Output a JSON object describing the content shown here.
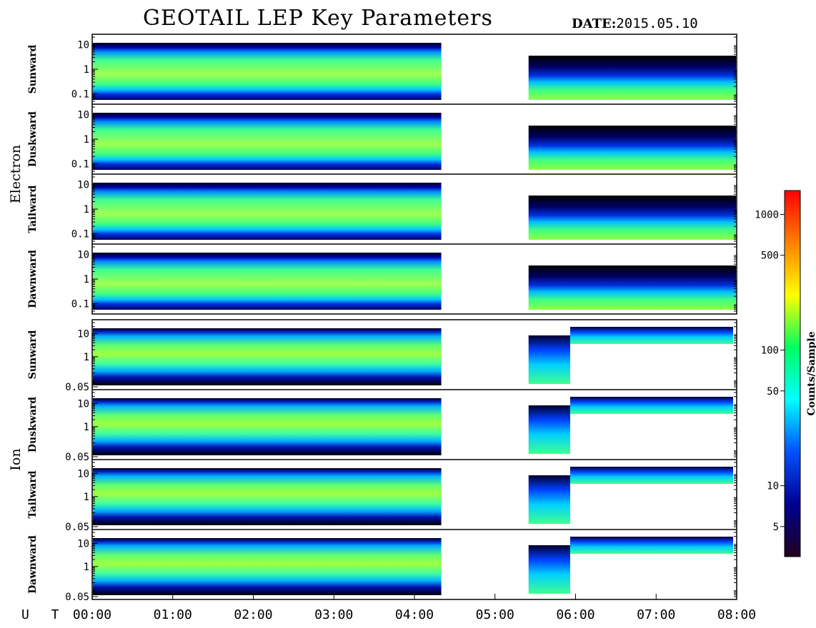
{
  "header": {
    "title": "GEOTAIL LEP Key Parameters",
    "date_label": "DATE:",
    "date_value": "2015.05.10"
  },
  "chart_data": {
    "type": "heatmap",
    "title": "GEOTAIL LEP Key Parameters",
    "date": "2015.05.10",
    "x_axis": {
      "label": "U T",
      "range": [
        "00:00",
        "08:00"
      ],
      "ticks": [
        "00:00",
        "01:00",
        "02:00",
        "03:00",
        "04:00",
        "05:00",
        "06:00",
        "07:00",
        "08:00"
      ]
    },
    "groups": [
      {
        "name": "Electron",
        "panels": [
          {
            "name": "Sunward",
            "y_ticks": [
              "10",
              "1",
              "0.1"
            ],
            "y_scale": "log",
            "y_range": [
              0.05,
              20
            ]
          },
          {
            "name": "Duskward",
            "y_ticks": [
              "10",
              "1",
              "0.1"
            ],
            "y_scale": "log",
            "y_range": [
              0.05,
              20
            ]
          },
          {
            "name": "Tailward",
            "y_ticks": [
              "10",
              "1",
              "0.1"
            ],
            "y_scale": "log",
            "y_range": [
              0.05,
              20
            ]
          },
          {
            "name": "Dawnward",
            "y_ticks": [
              "10",
              "1",
              "0.1"
            ],
            "y_scale": "log",
            "y_range": [
              0.05,
              20
            ]
          }
        ]
      },
      {
        "name": "Ion",
        "panels": [
          {
            "name": "Sunward",
            "y_ticks": [
              "10",
              "1",
              "0.05"
            ],
            "y_scale": "log",
            "y_range": [
              0.05,
              30
            ]
          },
          {
            "name": "Duskward",
            "y_ticks": [
              "10",
              "1",
              "0.05"
            ],
            "y_scale": "log",
            "y_range": [
              0.05,
              30
            ]
          },
          {
            "name": "Tailward",
            "y_ticks": [
              "10",
              "1",
              "0.05"
            ],
            "y_scale": "log",
            "y_range": [
              0.05,
              30
            ]
          },
          {
            "name": "Dawnward",
            "y_ticks": [
              "10",
              "1",
              "0.05"
            ],
            "y_scale": "log",
            "y_range": [
              0.05,
              30
            ]
          }
        ]
      }
    ],
    "data_gaps_ut": [
      [
        "04:20",
        "05:25"
      ]
    ],
    "colorbar": {
      "label": "Counts/Sample",
      "scale": "log",
      "range": [
        3,
        1500
      ],
      "ticks": [
        "1000",
        "500",
        "100",
        "50",
        "10",
        "5"
      ],
      "tick_values": [
        1000,
        500,
        100,
        50,
        10,
        5
      ],
      "colors": [
        "#200020",
        "#000090",
        "#0050ff",
        "#00ffff",
        "#00ff60",
        "#ffff00",
        "#ff8000",
        "#ff0000"
      ]
    }
  }
}
